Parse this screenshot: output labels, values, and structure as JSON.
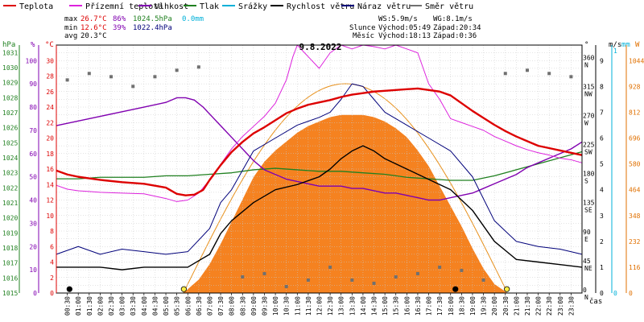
{
  "title": "9.8.2022",
  "legend": [
    {
      "name": "Teplota",
      "color": "#dd0000"
    },
    {
      "name": "Přízemní teplota",
      "color": "#dd22dd"
    },
    {
      "name": "Vlhkost",
      "color": "#8000b0"
    },
    {
      "name": "Tlak",
      "color": "#208020"
    },
    {
      "name": "Srážky",
      "color": "#00b0d8"
    },
    {
      "name": "Rychlost větru",
      "color": "#000000"
    },
    {
      "name": "Náraz větru",
      "color": "#00007a"
    },
    {
      "name": "Směr větru",
      "color": "#707070"
    }
  ],
  "stats": {
    "max": {
      "label": "max",
      "temp": "26.7°C",
      "hum": "86%",
      "press": "1024.5hPa",
      "rain": "0.0mm"
    },
    "min": {
      "label": "min",
      "temp": "12.6°C",
      "hum": "39%",
      "press": "1022.4hPa"
    },
    "avg": {
      "label": "avg",
      "temp": "20.3°C"
    }
  },
  "wind_info": {
    "ws": "WS:5.9m/s",
    "wg": "WG:8.1m/s",
    "sun_label": "Slunce",
    "sun_rise": "Východ:05:49",
    "sun_set": "Západ:20:34",
    "moon_label": "Měsíc",
    "moon_rise": "Východ:18:13",
    "moon_set": "Západ:0:36"
  },
  "axes": {
    "left_units": [
      "hPa",
      "%",
      "°C"
    ],
    "right_units": [
      "°",
      "m/s",
      "mm",
      "W"
    ],
    "time_label": "čas",
    "pressure_ticks": [
      "1015",
      "1016",
      "1017",
      "1018",
      "1019",
      "1020",
      "1021",
      "1022",
      "1023",
      "1024",
      "1025",
      "1026",
      "1027",
      "1028",
      "1029",
      "1030",
      "1031"
    ],
    "humidity_ticks": [
      "0",
      "10",
      "20",
      "30",
      "40",
      "50",
      "60",
      "70",
      "80",
      "90",
      "100"
    ],
    "temp_ticks": [
      "0",
      "2",
      "4",
      "6",
      "8",
      "10",
      "12",
      "14",
      "16",
      "18",
      "20",
      "22",
      "24",
      "26",
      "28",
      "30"
    ],
    "dir_ticks": [
      "0",
      "45",
      "90",
      "135",
      "180",
      "225",
      "270",
      "315",
      "360"
    ],
    "dir_names": [
      "N",
      "NE",
      "E",
      "SE",
      "S",
      "SW",
      "W",
      "NW",
      "N"
    ],
    "wind_ticks": [
      "0",
      "1",
      "2",
      "3",
      "4",
      "5",
      "6",
      "7",
      "8",
      "9"
    ],
    "rain_ticks": [
      "0",
      "1"
    ],
    "solar_ticks": [
      "0",
      "116",
      "232",
      "348",
      "464",
      "580",
      "696",
      "812",
      "928",
      "1044"
    ],
    "time_ticks": [
      "00:30",
      "01:00",
      "01:30",
      "02:00",
      "02:30",
      "03:00",
      "03:30",
      "04:00",
      "04:30",
      "05:00",
      "05:30",
      "06:00",
      "06:30",
      "07:00",
      "07:30",
      "08:00",
      "08:30",
      "09:00",
      "09:30",
      "10:00",
      "10:30",
      "11:00",
      "11:30",
      "12:00",
      "12:30",
      "13:00",
      "13:30",
      "14:00",
      "14:30",
      "15:00",
      "15:30",
      "16:00",
      "16:30",
      "17:00",
      "17:30",
      "18:00",
      "18:30",
      "19:00",
      "19:30",
      "20:00",
      "20:30",
      "21:00",
      "21:30",
      "22:00",
      "22:30",
      "23:00",
      "23:30"
    ]
  },
  "chart_data": {
    "type": "line",
    "title": "9.8.2022",
    "x_unit": "hour",
    "xlim": [
      0,
      24
    ],
    "temp_ylim": [
      0,
      32
    ],
    "humidity_ylim": [
      0,
      106.67
    ],
    "pressure_ylim": [
      1015,
      1031.5
    ],
    "wind_ylim": [
      0,
      9.6
    ],
    "dir_ylim": [
      0,
      384
    ],
    "solar_ylim": [
      0,
      1113.6
    ],
    "series": [
      {
        "name": "Teplota",
        "unit": "°C",
        "x": [
          0,
          0.5,
          1,
          1.5,
          2,
          3,
          4,
          5,
          5.5,
          5.9,
          6.3,
          6.7,
          7,
          7.5,
          8,
          8.5,
          9,
          9.5,
          10,
          10.5,
          11,
          11.5,
          12,
          12.5,
          13,
          13.5,
          14,
          14.5,
          15,
          15.5,
          16,
          16.5,
          17,
          17.5,
          18,
          18.5,
          19,
          19.5,
          20,
          20.5,
          21,
          21.5,
          22,
          22.5,
          23,
          23.5,
          24
        ],
        "y": [
          15.8,
          15.3,
          15,
          14.8,
          14.6,
          14.3,
          14.1,
          13.6,
          12.8,
          12.6,
          12.7,
          13.3,
          14.6,
          16.5,
          18.2,
          19.5,
          20.6,
          21.4,
          22.3,
          23.2,
          23.8,
          24.3,
          24.6,
          24.9,
          25.3,
          25.6,
          25.8,
          26.0,
          26.1,
          26.2,
          26.3,
          26.4,
          26.2,
          26.0,
          25.5,
          24.5,
          23.5,
          22.6,
          21.7,
          20.9,
          20.2,
          19.6,
          19.0,
          18.7,
          18.4,
          18.1,
          17.8
        ]
      },
      {
        "name": "Přízemní teplota",
        "unit": "°C",
        "x": [
          0,
          0.5,
          1,
          1.5,
          2,
          3,
          4,
          5,
          5.5,
          6,
          6.5,
          7,
          7.5,
          8,
          8.5,
          9,
          9.5,
          10,
          10.5,
          10.8,
          11,
          11.5,
          12,
          12.5,
          13,
          13.5,
          14,
          14.5,
          15,
          15.5,
          16,
          16.5,
          17,
          17.5,
          18,
          18.5,
          19,
          19.5,
          20,
          20.5,
          21,
          21.5,
          22,
          22.5,
          23,
          23.5,
          24
        ],
        "y": [
          13.9,
          13.4,
          13.2,
          13.1,
          13.0,
          12.9,
          12.8,
          12.2,
          11.8,
          12.0,
          12.9,
          14.6,
          16.6,
          18.6,
          20.2,
          21.5,
          22.8,
          24.5,
          27.5,
          30.5,
          32.0,
          30.5,
          29.0,
          31.0,
          32.0,
          31.5,
          32.0,
          31.8,
          31.5,
          32.0,
          31.5,
          31.0,
          27.0,
          25.0,
          22.5,
          22.0,
          21.5,
          21.0,
          20.2,
          19.6,
          19.0,
          18.5,
          18.1,
          17.8,
          17.4,
          17.2,
          16.8
        ]
      },
      {
        "name": "Vlhkost",
        "unit": "%",
        "x": [
          0,
          0.5,
          1,
          1.5,
          2,
          3,
          4,
          5,
          5.5,
          5.9,
          6.3,
          6.7,
          7,
          7.5,
          8,
          8.5,
          9,
          9.5,
          10,
          10.5,
          11,
          11.5,
          12,
          12.5,
          13,
          13.5,
          14,
          14.5,
          15,
          15.5,
          16,
          16.5,
          17,
          17.5,
          18,
          18.5,
          19,
          19.5,
          20,
          20.5,
          21,
          21.5,
          22,
          22.5,
          23,
          23.5,
          24
        ],
        "y": [
          72,
          73,
          74,
          75,
          76,
          78,
          80,
          82,
          84,
          84,
          83,
          80,
          77,
          72,
          67,
          62,
          57,
          53,
          51,
          49,
          48,
          47,
          46,
          46,
          46,
          45,
          45,
          44,
          43,
          43,
          42,
          41,
          40,
          40,
          41,
          42,
          43,
          45,
          47,
          49,
          51,
          54,
          56,
          58,
          60,
          62,
          65
        ]
      },
      {
        "name": "Tlak",
        "unit": "hPa",
        "x": [
          0,
          1,
          2,
          3,
          4,
          5,
          6,
          7,
          8,
          9,
          10,
          11,
          12,
          13,
          14,
          15,
          16,
          17,
          18,
          19,
          20,
          21,
          22,
          23,
          24
        ],
        "y": [
          1022.6,
          1022.6,
          1022.7,
          1022.7,
          1022.7,
          1022.8,
          1022.8,
          1022.9,
          1023.0,
          1023.2,
          1023.3,
          1023.2,
          1023.1,
          1023.1,
          1023.0,
          1022.9,
          1022.7,
          1022.6,
          1022.5,
          1022.5,
          1022.8,
          1023.2,
          1023.6,
          1024.0,
          1024.4
        ]
      },
      {
        "name": "Srážky",
        "unit": "mm",
        "x": [
          0,
          24
        ],
        "y": [
          0,
          0
        ]
      },
      {
        "name": "Rychlost větru",
        "unit": "m/s",
        "x": [
          0,
          1,
          2,
          3,
          4,
          5,
          6,
          7,
          7.5,
          8,
          9,
          10,
          11,
          12,
          12.5,
          13,
          13.5,
          14,
          14.5,
          15,
          16,
          17,
          18,
          19,
          20,
          21,
          22,
          23,
          24
        ],
        "y": [
          1.0,
          1.0,
          1.0,
          0.9,
          1.0,
          1.0,
          1.0,
          1.5,
          2.3,
          2.8,
          3.5,
          4.0,
          4.2,
          4.5,
          4.8,
          5.2,
          5.5,
          5.7,
          5.5,
          5.2,
          4.8,
          4.4,
          4.0,
          3.2,
          2.0,
          1.3,
          1.2,
          1.1,
          1.0
        ]
      },
      {
        "name": "Náraz větru",
        "unit": "m/s",
        "x": [
          0,
          1,
          2,
          3,
          4,
          5,
          6,
          7,
          7.5,
          8,
          9,
          10,
          11,
          12,
          12.5,
          13,
          13.5,
          14,
          14.5,
          15,
          16,
          17,
          18,
          19,
          20,
          21,
          22,
          23,
          24
        ],
        "y": [
          1.5,
          1.8,
          1.5,
          1.7,
          1.6,
          1.5,
          1.6,
          2.5,
          3.5,
          4.0,
          5.5,
          6.0,
          6.5,
          6.8,
          7.0,
          7.5,
          8.1,
          8.0,
          7.5,
          7.0,
          6.5,
          6.0,
          5.5,
          4.5,
          2.8,
          2.0,
          1.8,
          1.7,
          1.5
        ]
      },
      {
        "name": "Směr větru",
        "unit": "°",
        "x": [
          0.5,
          1.5,
          2.5,
          3.5,
          4.5,
          5.5,
          6.5,
          8.5,
          9.5,
          10.5,
          11.5,
          12.5,
          13.5,
          14.5,
          15.5,
          16.5,
          17.5,
          18.5,
          19.5,
          20.5,
          21.5,
          22.5,
          23.5
        ],
        "y": [
          330,
          340,
          335,
          320,
          335,
          345,
          350,
          25,
          30,
          10,
          20,
          40,
          20,
          15,
          25,
          30,
          40,
          35,
          20,
          340,
          345,
          340,
          335
        ]
      },
      {
        "name": "Sluneční záření",
        "unit": "W",
        "x": [
          0,
          5.8,
          6.5,
          7,
          7.5,
          8,
          8.5,
          9,
          9.5,
          10,
          10.5,
          11,
          11.5,
          12,
          12.5,
          13,
          13.5,
          14,
          14.5,
          15,
          15.5,
          16,
          16.5,
          17,
          17.5,
          18,
          18.5,
          19,
          19.5,
          20,
          20.6,
          24
        ],
        "y": [
          0,
          0,
          60,
          130,
          220,
          320,
          420,
          520,
          590,
          640,
          680,
          720,
          750,
          770,
          790,
          800,
          800,
          800,
          790,
          770,
          740,
          700,
          640,
          570,
          480,
          390,
          300,
          200,
          110,
          40,
          0,
          0
        ]
      }
    ]
  }
}
